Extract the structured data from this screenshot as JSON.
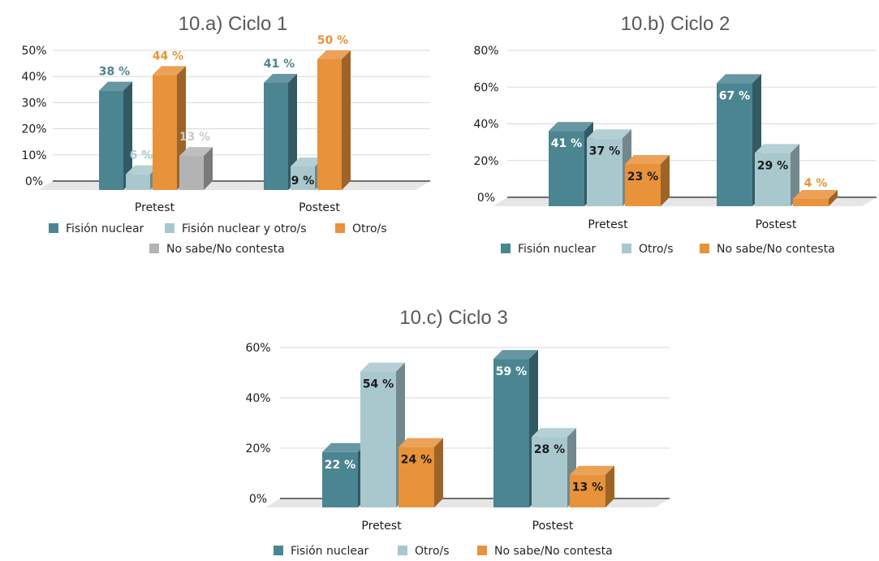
{
  "colors": {
    "fision_nuclear": "#4b8592",
    "fision_otro": "#a8c8ce",
    "otro": "#e8923a",
    "no_sabe": "#b3b3b3"
  },
  "chart_data": [
    {
      "type": "bar",
      "title": "10.a) Ciclo 1",
      "categories": [
        "Pretest",
        "Postest"
      ],
      "ylim": [
        0,
        50
      ],
      "yticks": [
        "0%",
        "10%",
        "20%",
        "30%",
        "40%",
        "50%"
      ],
      "legend_position": "bottom",
      "series": [
        {
          "name": "Fisión nuclear",
          "color_key": "fision_nuclear",
          "values": [
            38,
            41
          ],
          "labels": [
            "38 %",
            "41 %"
          ]
        },
        {
          "name": "Fisión nuclear y otro/s",
          "color_key": "fision_otro",
          "values": [
            6,
            9
          ],
          "labels": [
            "6 %",
            "9 %"
          ]
        },
        {
          "name": "Otro/s",
          "color_key": "otro",
          "values": [
            44,
            50
          ],
          "labels": [
            "44 %",
            "50 %"
          ]
        },
        {
          "name": "No sabe/No contesta",
          "color_key": "no_sabe",
          "values": [
            13,
            0
          ],
          "labels": [
            "13 %",
            ""
          ]
        }
      ]
    },
    {
      "type": "bar",
      "title": "10.b) Ciclo 2",
      "categories": [
        "Pretest",
        "Postest"
      ],
      "ylim": [
        0,
        80
      ],
      "yticks": [
        "0%",
        "20%",
        "40%",
        "60%",
        "80%"
      ],
      "legend_position": "bottom",
      "series": [
        {
          "name": "Fisión nuclear",
          "color_key": "fision_nuclear",
          "values": [
            41,
            67
          ],
          "labels": [
            "41 %",
            "67 %"
          ]
        },
        {
          "name": "Otro/s",
          "color_key": "fision_otro",
          "values": [
            37,
            29
          ],
          "labels": [
            "37 %",
            "29 %"
          ]
        },
        {
          "name": "No sabe/No contesta",
          "color_key": "otro",
          "values": [
            23,
            4
          ],
          "labels": [
            "23 %",
            "4 %"
          ]
        }
      ]
    },
    {
      "type": "bar",
      "title": "10.c) Ciclo 3",
      "categories": [
        "Pretest",
        "Postest"
      ],
      "ylim": [
        0,
        60
      ],
      "yticks": [
        "0%",
        "20%",
        "40%",
        "60%"
      ],
      "legend_position": "bottom",
      "series": [
        {
          "name": "Fisión nuclear",
          "color_key": "fision_nuclear",
          "values": [
            22,
            59
          ],
          "labels": [
            "22 %",
            "59 %"
          ]
        },
        {
          "name": "Otro/s",
          "color_key": "fision_otro",
          "values": [
            54,
            28
          ],
          "labels": [
            "54 %",
            "28 %"
          ]
        },
        {
          "name": "No sabe/No contesta",
          "color_key": "otro",
          "values": [
            24,
            13
          ],
          "labels": [
            "24 %",
            "13 %"
          ]
        }
      ]
    }
  ]
}
